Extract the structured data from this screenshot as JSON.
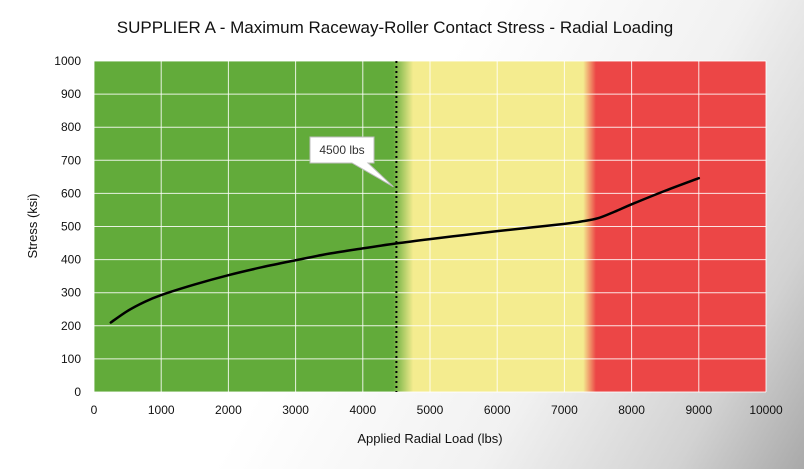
{
  "chart_data": {
    "type": "line",
    "title": "SUPPLIER A - Maximum Raceway-Roller Contact Stress - Radial Loading",
    "xlabel": "Applied Radial Load (lbs)",
    "ylabel": "Stress (ksi)",
    "xlim": [
      0,
      10000
    ],
    "ylim": [
      0,
      1000
    ],
    "x_ticks": [
      0,
      1000,
      2000,
      3000,
      4000,
      5000,
      6000,
      7000,
      8000,
      9000,
      10000
    ],
    "y_ticks": [
      0,
      100,
      200,
      300,
      400,
      500,
      600,
      700,
      800,
      900,
      1000
    ],
    "grid": true,
    "background_zones": [
      {
        "color": "#62ab3a",
        "from": 0,
        "to": 4500
      },
      {
        "color": "#f4ec8f",
        "from": 4500,
        "to": 7500
      },
      {
        "color": "#ec4646",
        "from": 7500,
        "to": 10000
      }
    ],
    "reference_line": {
      "x": 4500,
      "label": "4500 lbs",
      "style": "dotted"
    },
    "series": [
      {
        "color": "#000000",
        "x": [
          250,
          500,
          750,
          1000,
          1500,
          2000,
          2500,
          3000,
          3500,
          4000,
          4500,
          5000,
          5500,
          6000,
          6500,
          7000,
          7250,
          7500,
          7750,
          8000,
          8500,
          9000
        ],
        "y": [
          210,
          245,
          272,
          293,
          325,
          353,
          377,
          398,
          418,
          434,
          449,
          462,
          474,
          486,
          497,
          508,
          515,
          525,
          545,
          567,
          608,
          646
        ]
      }
    ]
  }
}
